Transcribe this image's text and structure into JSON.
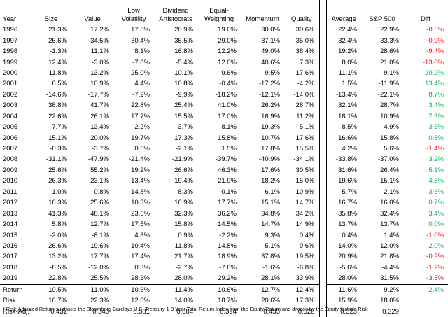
{
  "headers": {
    "year": "Year",
    "size": "Size",
    "value": "Value",
    "lowvol": [
      "Low",
      "Volatility"
    ],
    "dividend": [
      "Dividend",
      "Artistocrats"
    ],
    "equal": [
      "Equal-",
      "Weighting"
    ],
    "momentum": "Momentum",
    "quality": "Quality",
    "average": "Average",
    "sp500": "S&P 500",
    "diff": "Diff"
  },
  "colors": {
    "positive": "#00b050",
    "negative": "#ff0000"
  },
  "rows": [
    [
      "1996",
      "21.3%",
      "17.2%",
      "17.5%",
      "20.9%",
      "19.0%",
      "30.0%",
      "30.6%",
      "22.4%",
      "22.9%",
      "-0.5%"
    ],
    [
      "1997",
      "25.6%",
      "34.5%",
      "30.4%",
      "35.5%",
      "29.0%",
      "37.1%",
      "35.0%",
      "32.4%",
      "33.3%",
      "-0.9%"
    ],
    [
      "1998",
      "-1.3%",
      "11.1%",
      "8.1%",
      "16.8%",
      "12.2%",
      "49.0%",
      "38.4%",
      "19.2%",
      "28.6%",
      "-9.4%"
    ],
    [
      "1999",
      "12.4%",
      "-3.0%",
      "-7.8%",
      "-5.4%",
      "12.0%",
      "40.6%",
      "7.3%",
      "8.0%",
      "21.0%",
      "-13.0%"
    ],
    [
      "2000",
      "11.8%",
      "13.2%",
      "25.0%",
      "10.1%",
      "9.6%",
      "-9.5%",
      "17.6%",
      "11.1%",
      "-9.1%",
      "20.2%"
    ],
    [
      "2001",
      "6.5%",
      "10.9%",
      "4.4%",
      "10.8%",
      "-0.4%",
      "-17.2%",
      "-4.2%",
      "1.5%",
      "-11.9%",
      "13.4%"
    ],
    [
      "2002",
      "-14.6%",
      "-17.7%",
      "-7.2%",
      "-9.9%",
      "-18.2%",
      "-12.1%",
      "-14.0%",
      "-13.4%",
      "-22.1%",
      "8.7%"
    ],
    [
      "2003",
      "38.8%",
      "41.7%",
      "22.8%",
      "25.4%",
      "41.0%",
      "26.2%",
      "28.7%",
      "32.1%",
      "28.7%",
      "3.4%"
    ],
    [
      "2004",
      "22.6%",
      "26.1%",
      "17.7%",
      "15.5%",
      "17.0%",
      "16.9%",
      "11.2%",
      "18.1%",
      "10.9%",
      "7.3%"
    ],
    [
      "2005",
      "7.7%",
      "13.4%",
      "2.2%",
      "3.7%",
      "8.1%",
      "19.3%",
      "5.1%",
      "8.5%",
      "4.9%",
      "3.6%"
    ],
    [
      "2006",
      "15.1%",
      "20.0%",
      "19.7%",
      "17.3%",
      "15.8%",
      "10.7%",
      "17.6%",
      "16.6%",
      "15.8%",
      "0.8%"
    ],
    [
      "2007",
      "-0.3%",
      "-3.7%",
      "0.6%",
      "-2.1%",
      "1.5%",
      "17.8%",
      "15.5%",
      "4.2%",
      "5.6%",
      "-1.4%"
    ],
    [
      "2008",
      "-31.1%",
      "-47.9%",
      "-21.4%",
      "-21.9%",
      "-39.7%",
      "-40.9%",
      "-34.1%",
      "-33.8%",
      "-37.0%",
      "3.2%"
    ],
    [
      "2009",
      "25.6%",
      "55.2%",
      "19.2%",
      "26.6%",
      "46.3%",
      "17.6%",
      "30.5%",
      "31.6%",
      "26.4%",
      "5.1%"
    ],
    [
      "2010",
      "26.3%",
      "23.1%",
      "13.4%",
      "19.4%",
      "21.9%",
      "18.2%",
      "15.0%",
      "19.6%",
      "15.1%",
      "4.5%"
    ],
    [
      "2011",
      "1.0%",
      "-0.8%",
      "14.8%",
      "8.3%",
      "-0.1%",
      "6.1%",
      "10.9%",
      "5.7%",
      "2.1%",
      "3.6%"
    ],
    [
      "2012",
      "16.3%",
      "25.6%",
      "10.3%",
      "16.9%",
      "17.7%",
      "15.1%",
      "14.7%",
      "16.7%",
      "16.0%",
      "0.7%"
    ],
    [
      "2013",
      "41.3%",
      "48.1%",
      "23.6%",
      "32.3%",
      "36.2%",
      "34.8%",
      "34.2%",
      "35.8%",
      "32.4%",
      "3.4%"
    ],
    [
      "2014",
      "5.8%",
      "12.7%",
      "17.5%",
      "15.8%",
      "14.5%",
      "14.7%",
      "14.9%",
      "13.7%",
      "13.7%",
      "0.0%"
    ],
    [
      "2015",
      "-2.0%",
      "-8.1%",
      "4.3%",
      "0.9%",
      "-2.2%",
      "9.3%",
      "0.4%",
      "0.4%",
      "1.4%",
      "-1.0%"
    ],
    [
      "2016",
      "26.6%",
      "19.6%",
      "10.4%",
      "11.8%",
      "14.8%",
      "5.1%",
      "9.6%",
      "14.0%",
      "12.0%",
      "2.0%"
    ],
    [
      "2017",
      "13.2%",
      "17.7%",
      "17.4%",
      "21.7%",
      "18.9%",
      "37.8%",
      "19.5%",
      "20.9%",
      "21.8%",
      "-0.9%"
    ],
    [
      "2018",
      "-8.5%",
      "-12.0%",
      "0.3%",
      "-2.7%",
      "-7.6%",
      "-1.6%",
      "-6.8%",
      "-5.6%",
      "-4.4%",
      "-1.2%"
    ],
    [
      "2019",
      "22.8%",
      "25.5%",
      "28.3%",
      "28.0%",
      "29.2%",
      "28.1%",
      "33.9%",
      "28.0%",
      "31.5%",
      "-3.5%"
    ]
  ],
  "summary": [
    [
      "Return",
      "10.5%",
      "11.0%",
      "10.6%",
      "11.4%",
      "10.6%",
      "12.7%",
      "12.4%",
      "11.6%",
      "9.2%",
      "2.4%"
    ],
    [
      "Risk",
      "16.7%",
      "22.3%",
      "12.6%",
      "14.0%",
      "18.7%",
      "20.6%",
      "17.3%",
      "15.9%",
      "18.0%",
      ""
    ],
    [
      "Risk-Adj.*",
      "0.432",
      "0.345",
      "0.581",
      "0.584",
      "0.394",
      "0.455",
      "0.528",
      "0.523",
      "0.329",
      ""
    ]
  ],
  "footnote": "* Risk-Adjusted Return subtracts the Bloomberg Barclays U.S. Treasury 1-3 Year Total Return Index from the Equity Return and divides by the Equity factor's Risk"
}
